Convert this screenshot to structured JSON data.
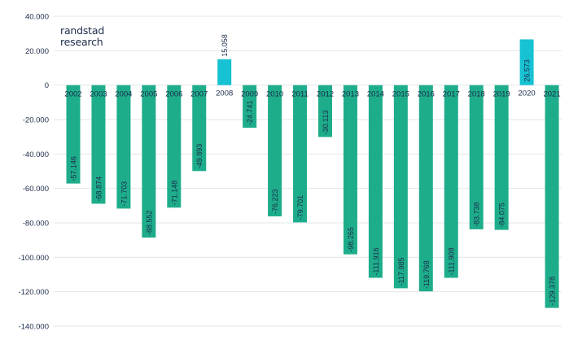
{
  "brand": {
    "line1": "randstad",
    "line2": "research"
  },
  "colors": {
    "negative": "#1ead8b",
    "positive": "#17c2d3",
    "grid": "#e3e6ea",
    "text": "#1b2a49"
  },
  "chart_data": {
    "type": "bar",
    "title": "",
    "xlabel": "",
    "ylabel": "",
    "categories": [
      "2002",
      "2003",
      "2004",
      "2005",
      "2006",
      "2007",
      "2008",
      "2009",
      "2010",
      "2011",
      "2012",
      "2013",
      "2014",
      "2015",
      "2016",
      "2017",
      "2018",
      "2019",
      "2020",
      "2021"
    ],
    "values": [
      -57146,
      -68874,
      -71703,
      -88552,
      -71148,
      -49893,
      15058,
      -24741,
      -76223,
      -79701,
      -30113,
      -98265,
      -111916,
      -117985,
      -119768,
      -111908,
      -83738,
      -84075,
      26573,
      -129378
    ],
    "value_labels": [
      "-57.146",
      "-68.874",
      "-71.703",
      "-88.552",
      "-71.148",
      "-49.893",
      "15.058",
      "-24.741",
      "-76.223",
      "-79.701",
      "-30.113",
      "-98.265",
      "-111.916",
      "-117.985",
      "-119.768",
      "-111.908",
      "-83.738",
      "-84.075",
      "26.573",
      "-129.378"
    ],
    "ylim": [
      -140000,
      40000
    ],
    "yticks": [
      40000,
      20000,
      0,
      -20000,
      -40000,
      -60000,
      -80000,
      -100000,
      -120000,
      -140000
    ],
    "ytick_labels": [
      "40.000",
      "20.000",
      "0",
      "-20.000",
      "-40.000",
      "-60.000",
      "-80.000",
      "-100.000",
      "-120.000",
      "-140.000"
    ],
    "grid": true,
    "legend": "none"
  }
}
